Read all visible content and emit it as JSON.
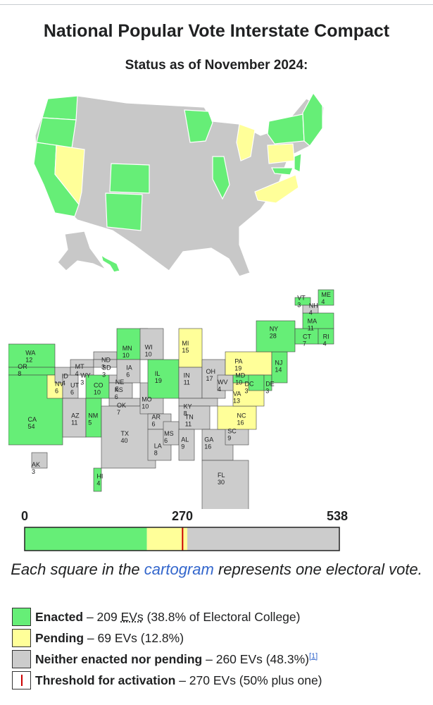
{
  "title": "National Popular Vote Interstate Compact",
  "subtitle": "Status as of November 2024:",
  "colors": {
    "enacted": "#66ee77",
    "pending": "#ffff99",
    "neither": "#cccccc",
    "threshold": "#cc0000"
  },
  "cartogram_labels": [
    {
      "st": "WA",
      "ev": "12"
    },
    {
      "st": "OR",
      "ev": "8"
    },
    {
      "st": "CA",
      "ev": "54"
    },
    {
      "st": "NV",
      "ev": "6"
    },
    {
      "st": "ID",
      "ev": "4"
    },
    {
      "st": "UT",
      "ev": "6"
    },
    {
      "st": "AZ",
      "ev": "11"
    },
    {
      "st": "MT",
      "ev": "4"
    },
    {
      "st": "WY",
      "ev": "3"
    },
    {
      "st": "CO",
      "ev": "10"
    },
    {
      "st": "NM",
      "ev": "5"
    },
    {
      "st": "ND",
      "ev": "3"
    },
    {
      "st": "SD",
      "ev": "3"
    },
    {
      "st": "NE",
      "ev": "5"
    },
    {
      "st": "KS",
      "ev": "6"
    },
    {
      "st": "OK",
      "ev": "7"
    },
    {
      "st": "TX",
      "ev": "40"
    },
    {
      "st": "MN",
      "ev": "10"
    },
    {
      "st": "IA",
      "ev": "6"
    },
    {
      "st": "MO",
      "ev": "10"
    },
    {
      "st": "AR",
      "ev": "6"
    },
    {
      "st": "LA",
      "ev": "8"
    },
    {
      "st": "WI",
      "ev": "10"
    },
    {
      "st": "IL",
      "ev": "19"
    },
    {
      "st": "MI",
      "ev": "15"
    },
    {
      "st": "IN",
      "ev": "11"
    },
    {
      "st": "OH",
      "ev": "17"
    },
    {
      "st": "KY",
      "ev": "8"
    },
    {
      "st": "TN",
      "ev": "11"
    },
    {
      "st": "MS",
      "ev": "6"
    },
    {
      "st": "AL",
      "ev": "9"
    },
    {
      "st": "GA",
      "ev": "16"
    },
    {
      "st": "FL",
      "ev": "30"
    },
    {
      "st": "SC",
      "ev": "9"
    },
    {
      "st": "NC",
      "ev": "16"
    },
    {
      "st": "VA",
      "ev": "13"
    },
    {
      "st": "WV",
      "ev": "4"
    },
    {
      "st": "PA",
      "ev": "19"
    },
    {
      "st": "MD",
      "ev": "10"
    },
    {
      "st": "DC",
      "ev": "3"
    },
    {
      "st": "DE",
      "ev": "3"
    },
    {
      "st": "NJ",
      "ev": "14"
    },
    {
      "st": "NY",
      "ev": "28"
    },
    {
      "st": "CT",
      "ev": "7"
    },
    {
      "st": "RI",
      "ev": "4"
    },
    {
      "st": "MA",
      "ev": "11"
    },
    {
      "st": "VT",
      "ev": "3"
    },
    {
      "st": "NH",
      "ev": "4"
    },
    {
      "st": "ME",
      "ev": "4"
    },
    {
      "st": "AK",
      "ev": "3"
    },
    {
      "st": "HI",
      "ev": "4"
    }
  ],
  "bar": {
    "min_label": "0",
    "mid_label": "270",
    "max_label": "538",
    "total": 538,
    "enacted": 209,
    "pending": 69,
    "threshold": 270
  },
  "caption": {
    "before": "Each square in the ",
    "link": "cartogram",
    "after": " represents one electoral vote."
  },
  "legend": [
    {
      "key": "enacted",
      "label": "Enacted",
      "pre": " – 209 ",
      "abbr": "EVs",
      "post": " (38.8% of Electoral College)",
      "ref": ""
    },
    {
      "key": "pending",
      "label": "Pending",
      "pre": " – 69 EVs (12.8%)",
      "abbr": "",
      "post": "",
      "ref": ""
    },
    {
      "key": "neither",
      "label": "Neither enacted nor pending",
      "pre": " – 260 EVs (48.3%)",
      "abbr": "",
      "post": "",
      "ref": "[1]"
    },
    {
      "key": "threshold",
      "label": "Threshold for activation",
      "pre": " – 270 EVs (50% plus one)",
      "abbr": "",
      "post": "",
      "ref": ""
    }
  ]
}
